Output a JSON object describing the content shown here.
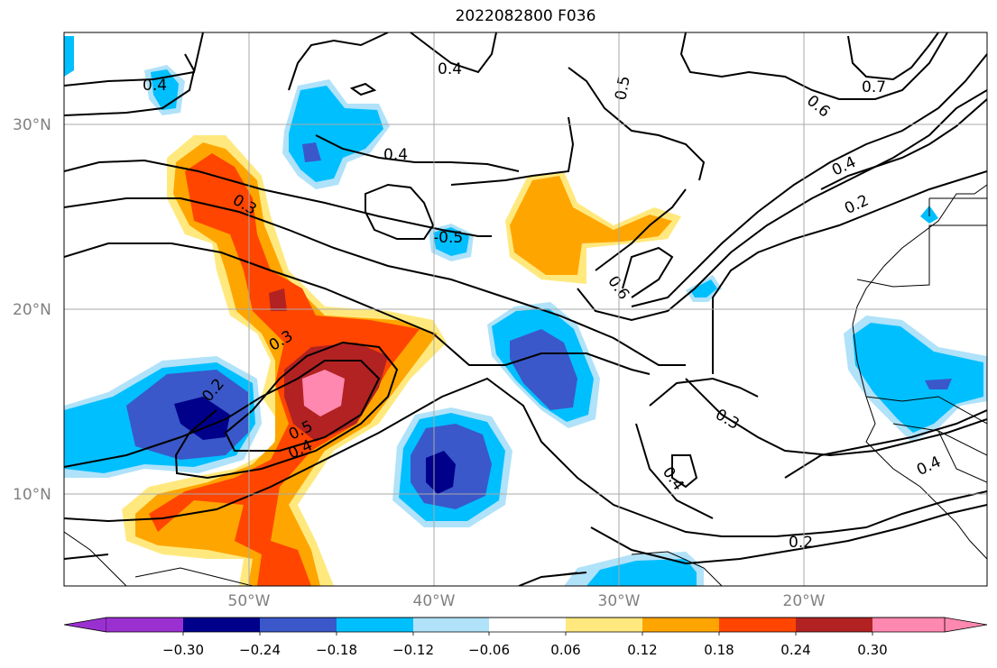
{
  "title": "2022082800 F036",
  "lat_labels": [
    "30°N",
    "20°N",
    "10°N"
  ],
  "lon_labels": [
    "50°W",
    "40°W",
    "30°W",
    "20°W"
  ],
  "contour_labels": [
    "0.4",
    "0.4",
    "0.4",
    "0.5",
    "0.6",
    "0.7",
    "0.4",
    "0.2",
    "0.3",
    "-0.5",
    "0.6",
    "0.3",
    "0.2",
    "0.5",
    "0.4",
    "0.3",
    "0.4",
    "0.4",
    "0.2"
  ],
  "colorbar": {
    "ticks": [
      "−0.30",
      "−0.24",
      "−0.18",
      "−0.12",
      "−0.06",
      "0.06",
      "0.12",
      "0.18",
      "0.24",
      "0.30"
    ],
    "colors": [
      "#9b30d0",
      "#00008b",
      "#3a58c9",
      "#00bfff",
      "#b0e2f9",
      "#ffffff",
      "#ffe97f",
      "#ffa500",
      "#ff4500",
      "#b22222",
      "#ff88b0"
    ]
  },
  "palette": {
    "lightblue": "#b0e2f9",
    "cyan": "#00bfff",
    "blue": "#3a58c9",
    "navy": "#00008b",
    "yellow": "#ffe97f",
    "orange": "#ffa500",
    "red": "#ff4500",
    "darkred": "#b22222",
    "pink": "#ff88b0"
  }
}
